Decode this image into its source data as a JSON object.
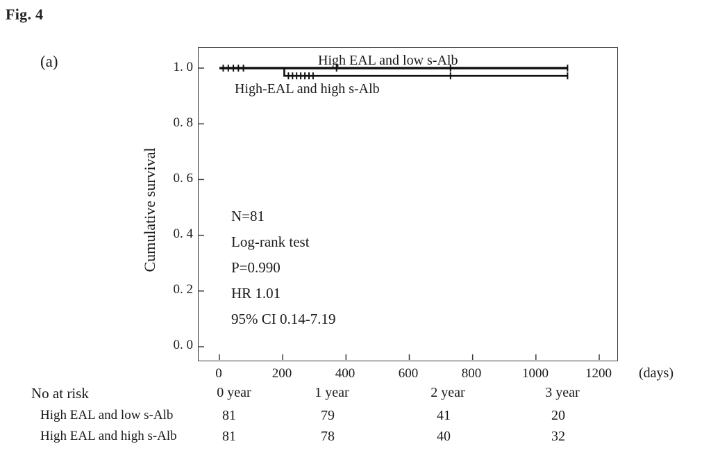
{
  "figure_label": "Fig. 4",
  "panel_label": "(a)",
  "chart": {
    "ylabel": "Cumulative survival",
    "x_unit": "(days)",
    "y_ticks": [
      "1. 0",
      "0. 8",
      "0. 6",
      "0. 4",
      "0. 2",
      "0. 0"
    ],
    "x_ticks": [
      "0",
      "200",
      "400",
      "600",
      "800",
      "1000",
      "1200"
    ],
    "curve_label_low": "High EAL and low s-Alb",
    "curve_label_high": "High-EAL and high s-Alb",
    "stats": [
      "N=81",
      "Log-rank test",
      "P=0.990",
      "HR 1.01",
      "95% CI 0.14-7.19"
    ]
  },
  "chart_data": {
    "type": "line",
    "title": "",
    "xlabel": "(days)",
    "ylabel": "Cumulative survival",
    "xlim": [
      0,
      1200
    ],
    "ylim": [
      0.0,
      1.0
    ],
    "x_tick_values": [
      0,
      200,
      400,
      600,
      800,
      1000,
      1200
    ],
    "y_tick_values": [
      0.0,
      0.2,
      0.4,
      0.6,
      0.8,
      1.0
    ],
    "legend_position": "inline-labels",
    "grid": false,
    "series": [
      {
        "name": "High EAL and low s-Alb",
        "x": [
          0,
          1100
        ],
        "y": [
          1.0,
          1.0
        ],
        "censors": [
          [
            12,
            1.0
          ],
          [
            28,
            1.0
          ],
          [
            44,
            1.0
          ],
          [
            60,
            1.0
          ],
          [
            76,
            1.0
          ],
          [
            370,
            1.0
          ],
          [
            730,
            1.0
          ],
          [
            1100,
            1.0
          ]
        ]
      },
      {
        "name": "High-EAL and high s-Alb",
        "x": [
          0,
          205,
          205,
          1100
        ],
        "y": [
          1.0,
          1.0,
          0.972,
          0.972
        ],
        "censors": [
          [
            218,
            0.972
          ],
          [
            231,
            0.972
          ],
          [
            244,
            0.972
          ],
          [
            257,
            0.972
          ],
          [
            270,
            0.972
          ],
          [
            283,
            0.972
          ],
          [
            296,
            0.972
          ],
          [
            730,
            0.972
          ],
          [
            1100,
            0.972
          ]
        ]
      }
    ],
    "annotations": [
      "N=81",
      "Log-rank test",
      "P=0.990",
      "HR 1.01",
      "95% CI 0.14-7.19"
    ]
  },
  "risk_table": {
    "title": "No at risk",
    "columns": [
      "0 year",
      "1 year",
      "2 year",
      "3 year"
    ],
    "rows": [
      {
        "label": "High EAL and low s-Alb",
        "values": [
          "81",
          "79",
          "41",
          "20"
        ]
      },
      {
        "label": "High EAL and high s-Alb",
        "values": [
          "81",
          "78",
          "40",
          "32"
        ]
      }
    ]
  }
}
